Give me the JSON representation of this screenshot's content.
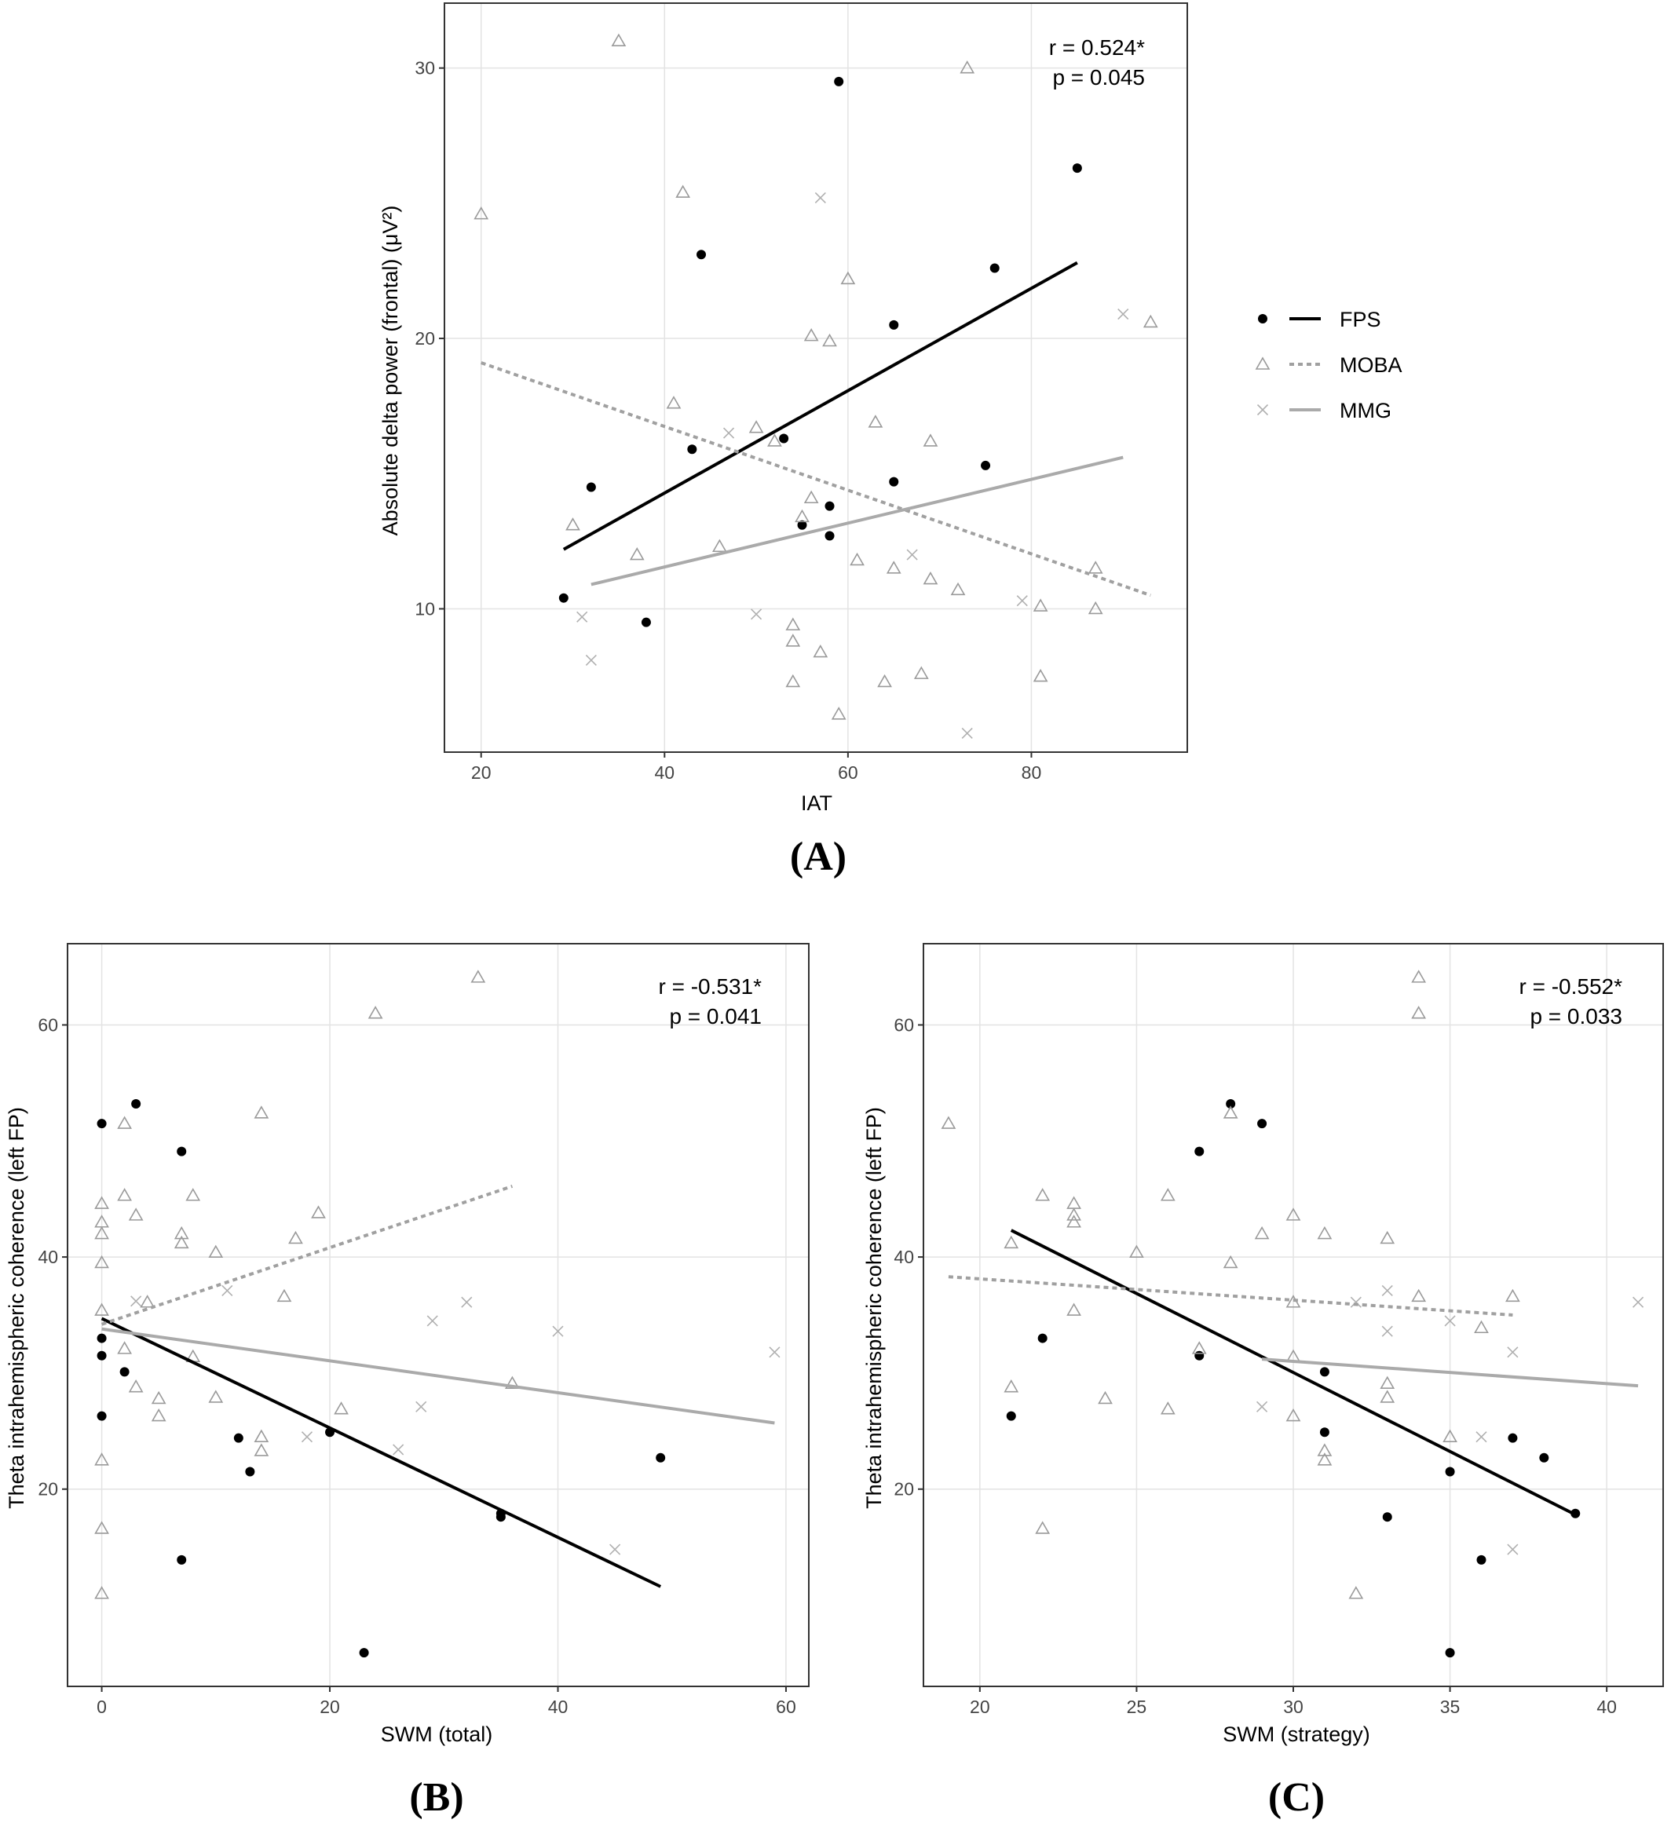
{
  "legend": {
    "entries": [
      {
        "label": "FPS",
        "marker": "dot",
        "line": "solid",
        "color": "#000000"
      },
      {
        "label": "MOBA",
        "marker": "triangle",
        "line": "dotted",
        "color": "#9a9a9a"
      },
      {
        "label": "MMG",
        "marker": "cross",
        "line": "solid",
        "color": "#a8a8a8"
      }
    ]
  },
  "chart_data": [
    {
      "panel": "(A)",
      "type": "scatter",
      "xlabel": "IAT",
      "ylabel": "Absolute delta power (frontal) (μV²)",
      "xlim": [
        16,
        97
      ],
      "ylim": [
        4.7,
        32.4
      ],
      "xticks": [
        20,
        40,
        60,
        80
      ],
      "yticks": [
        10,
        20,
        30
      ],
      "grid": true,
      "annotation": [
        "r = 0.524*",
        "p = 0.045"
      ],
      "series": [
        {
          "name": "FPS",
          "points": [
            [
              29,
              10.4
            ],
            [
              32,
              14.5
            ],
            [
              38,
              9.5
            ],
            [
              43,
              15.9
            ],
            [
              44,
              23.1
            ],
            [
              53,
              16.3
            ],
            [
              55,
              13.1
            ],
            [
              58,
              13.8
            ],
            [
              58,
              12.7
            ],
            [
              59,
              29.5
            ],
            [
              65,
              20.5
            ],
            [
              65,
              14.7
            ],
            [
              75,
              15.3
            ],
            [
              76,
              22.6
            ],
            [
              85,
              26.3
            ]
          ],
          "fit": [
            [
              29,
              12.2
            ],
            [
              85,
              22.8
            ]
          ]
        },
        {
          "name": "MOBA",
          "points": [
            [
              20,
              24.6
            ],
            [
              30,
              13.1
            ],
            [
              35,
              31.0
            ],
            [
              37,
              12.0
            ],
            [
              41,
              17.6
            ],
            [
              42,
              25.4
            ],
            [
              46,
              12.3
            ],
            [
              50,
              16.7
            ],
            [
              52,
              16.2
            ],
            [
              54,
              7.3
            ],
            [
              54,
              8.8
            ],
            [
              54,
              9.4
            ],
            [
              55,
              13.4
            ],
            [
              56,
              14.1
            ],
            [
              56,
              20.1
            ],
            [
              57,
              8.4
            ],
            [
              58,
              19.9
            ],
            [
              59,
              6.1
            ],
            [
              60,
              22.2
            ],
            [
              61,
              11.8
            ],
            [
              63,
              16.9
            ],
            [
              64,
              7.3
            ],
            [
              65,
              11.5
            ],
            [
              68,
              7.6
            ],
            [
              69,
              11.1
            ],
            [
              69,
              16.2
            ],
            [
              72,
              10.7
            ],
            [
              73,
              30.0
            ],
            [
              81,
              10.1
            ],
            [
              81,
              7.5
            ],
            [
              87,
              11.5
            ],
            [
              87,
              10.0
            ],
            [
              93,
              20.6
            ]
          ],
          "fit": [
            [
              20,
              19.1
            ],
            [
              93,
              10.5
            ]
          ]
        },
        {
          "name": "MMG",
          "points": [
            [
              31,
              9.7
            ],
            [
              32,
              8.1
            ],
            [
              47,
              16.5
            ],
            [
              50,
              9.8
            ],
            [
              57,
              25.2
            ],
            [
              67,
              12.0
            ],
            [
              73,
              5.4
            ],
            [
              79,
              10.3
            ],
            [
              90,
              20.9
            ]
          ],
          "fit": [
            [
              32,
              10.9
            ],
            [
              90,
              15.6
            ]
          ]
        }
      ]
    },
    {
      "panel": "(B)",
      "type": "scatter",
      "xlabel": "SWM (total)",
      "ylabel": "Theta intrahemispheric coherence (left FP)",
      "xlim": [
        -3,
        62
      ],
      "ylim": [
        3,
        67
      ],
      "xticks": [
        0,
        20,
        40,
        60
      ],
      "yticks": [
        20,
        40,
        60
      ],
      "grid": true,
      "annotation": [
        "r = -0.531*",
        "p = 0.041"
      ],
      "series": [
        {
          "name": "FPS",
          "points": [
            [
              0,
              51.5
            ],
            [
              0,
              33.0
            ],
            [
              0,
              31.5
            ],
            [
              0,
              26.3
            ],
            [
              2,
              30.1
            ],
            [
              3,
              53.2
            ],
            [
              7,
              49.1
            ],
            [
              7,
              13.9
            ],
            [
              12,
              24.4
            ],
            [
              13,
              21.5
            ],
            [
              20,
              24.9
            ],
            [
              23,
              5.9
            ],
            [
              35,
              17.6
            ],
            [
              35,
              17.9
            ],
            [
              49,
              22.7
            ]
          ],
          "fit": [
            [
              0,
              34.7
            ],
            [
              49,
              11.6
            ]
          ]
        },
        {
          "name": "MOBA",
          "points": [
            [
              0,
              44.6
            ],
            [
              0,
              43.0
            ],
            [
              0,
              42.0
            ],
            [
              0,
              39.5
            ],
            [
              0,
              35.4
            ],
            [
              0,
              22.5
            ],
            [
              0,
              16.6
            ],
            [
              0,
              11.0
            ],
            [
              2,
              51.5
            ],
            [
              2,
              45.3
            ],
            [
              2,
              32.1
            ],
            [
              3,
              43.6
            ],
            [
              3,
              28.8
            ],
            [
              4,
              36.1
            ],
            [
              5,
              27.8
            ],
            [
              5,
              26.3
            ],
            [
              7,
              42.0
            ],
            [
              7,
              41.2
            ],
            [
              8,
              45.3
            ],
            [
              8,
              31.4
            ],
            [
              10,
              40.4
            ],
            [
              10,
              27.9
            ],
            [
              14,
              52.4
            ],
            [
              14,
              24.5
            ],
            [
              14,
              23.3
            ],
            [
              16,
              36.6
            ],
            [
              17,
              41.6
            ],
            [
              19,
              43.8
            ],
            [
              21,
              26.9
            ],
            [
              24,
              61.0
            ],
            [
              33,
              64.1
            ],
            [
              36,
              29.1
            ]
          ],
          "fit": [
            [
              0,
              34.2
            ],
            [
              36,
              46.1
            ]
          ]
        },
        {
          "name": "MMG",
          "points": [
            [
              3,
              36.2
            ],
            [
              11,
              37.1
            ],
            [
              18,
              24.5
            ],
            [
              26,
              23.4
            ],
            [
              28,
              27.1
            ],
            [
              29,
              34.5
            ],
            [
              32,
              36.1
            ],
            [
              40,
              33.6
            ],
            [
              45,
              14.8
            ],
            [
              59,
              31.8
            ]
          ],
          "fit": [
            [
              0,
              33.8
            ],
            [
              59,
              25.7
            ]
          ]
        }
      ]
    },
    {
      "panel": "(C)",
      "type": "scatter",
      "xlabel": "SWM (strategy)",
      "ylabel": "Theta intrahemispheric coherence (left FP)",
      "xlim": [
        18.2,
        41.8
      ],
      "ylim": [
        3,
        67
      ],
      "xticks": [
        20,
        25,
        30,
        35,
        40
      ],
      "yticks": [
        20,
        40,
        60
      ],
      "grid": true,
      "annotation": [
        "r = -0.552*",
        "p = 0.033"
      ],
      "series": [
        {
          "name": "FPS",
          "points": [
            [
              21,
              26.3
            ],
            [
              22,
              33.0
            ],
            [
              27,
              49.1
            ],
            [
              27,
              31.5
            ],
            [
              28,
              53.2
            ],
            [
              29,
              51.5
            ],
            [
              31,
              30.1
            ],
            [
              31,
              24.9
            ],
            [
              33,
              17.6
            ],
            [
              35,
              21.5
            ],
            [
              35,
              5.9
            ],
            [
              36,
              13.9
            ],
            [
              37,
              24.4
            ],
            [
              38,
              22.7
            ],
            [
              39,
              17.9
            ]
          ],
          "fit": [
            [
              21,
              42.3
            ],
            [
              39,
              17.8
            ]
          ]
        },
        {
          "name": "MOBA",
          "points": [
            [
              19,
              51.5
            ],
            [
              21,
              41.2
            ],
            [
              21,
              28.8
            ],
            [
              22,
              45.3
            ],
            [
              22,
              16.6
            ],
            [
              23,
              44.6
            ],
            [
              23,
              43.6
            ],
            [
              23,
              43.0
            ],
            [
              23,
              35.4
            ],
            [
              24,
              27.8
            ],
            [
              25,
              40.4
            ],
            [
              26,
              45.3
            ],
            [
              26,
              26.9
            ],
            [
              27,
              32.1
            ],
            [
              28,
              52.4
            ],
            [
              28,
              39.5
            ],
            [
              29,
              42.0
            ],
            [
              30,
              43.6
            ],
            [
              30,
              36.1
            ],
            [
              30,
              31.4
            ],
            [
              30,
              26.3
            ],
            [
              31,
              42.0
            ],
            [
              31,
              23.3
            ],
            [
              31,
              22.5
            ],
            [
              32,
              11.0
            ],
            [
              33,
              41.6
            ],
            [
              33,
              29.1
            ],
            [
              33,
              27.9
            ],
            [
              34,
              64.1
            ],
            [
              34,
              61.0
            ],
            [
              34,
              36.6
            ],
            [
              35,
              24.5
            ],
            [
              36,
              33.9
            ],
            [
              37,
              36.6
            ]
          ],
          "fit": [
            [
              19,
              38.3
            ],
            [
              37,
              35.0
            ]
          ]
        },
        {
          "name": "MMG",
          "points": [
            [
              29,
              27.1
            ],
            [
              32,
              36.1
            ],
            [
              33,
              37.1
            ],
            [
              33,
              33.6
            ],
            [
              35,
              34.5
            ],
            [
              36,
              24.5
            ],
            [
              37,
              31.8
            ],
            [
              37,
              14.8
            ],
            [
              41,
              36.1
            ]
          ],
          "fit": [
            [
              29,
              31.2
            ],
            [
              41,
              28.9
            ]
          ]
        }
      ]
    }
  ]
}
